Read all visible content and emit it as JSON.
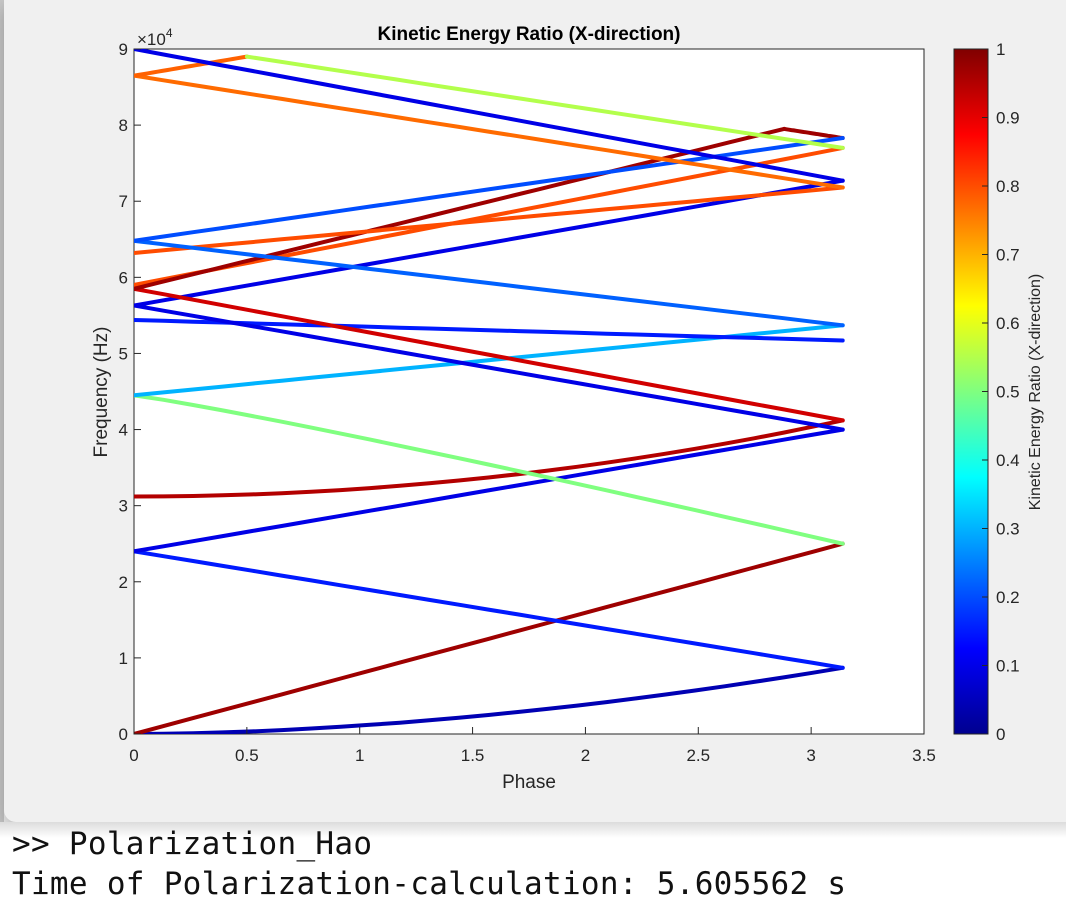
{
  "figure": {
    "title": "Kinetic Energy Ratio (X-direction)"
  },
  "chart_data": {
    "type": "line",
    "title": "Kinetic Energy Ratio (X-direction)",
    "xlabel": "Phase",
    "ylabel": "Frequency (Hz)",
    "y_exponent_label": "×10",
    "y_exponent_power": "4",
    "xlim": [
      0,
      3.5
    ],
    "ylim": [
      0,
      90000
    ],
    "x_ticks": [
      "0",
      "0.5",
      "1",
      "1.5",
      "2",
      "2.5",
      "3",
      "3.5"
    ],
    "y_ticks": [
      "0",
      "1",
      "2",
      "3",
      "4",
      "5",
      "6",
      "7",
      "8",
      "9"
    ],
    "colorbar": {
      "label": "Kinetic Energy Ratio (X-direction)",
      "range": [
        0,
        1
      ],
      "ticks": [
        "0",
        "0.1",
        "0.2",
        "0.3",
        "0.4",
        "0.5",
        "0.6",
        "0.7",
        "0.8",
        "0.9",
        "1"
      ],
      "colormap": "jet"
    },
    "grid": false,
    "series": [
      {
        "x": [
          0,
          3.14
        ],
        "y": [
          0,
          8700
        ],
        "c": 0.05,
        "curve": 1.8
      },
      {
        "x": [
          0,
          3.14
        ],
        "y": [
          0,
          25000
        ],
        "c": 0.97,
        "curve": 1
      },
      {
        "x": [
          0,
          3.14
        ],
        "y": [
          24000,
          8700
        ],
        "c": 0.15,
        "curve": 1
      },
      {
        "x": [
          0,
          3.14
        ],
        "y": [
          24000,
          40000
        ],
        "c": 0.1,
        "curve": 1
      },
      {
        "x": [
          0,
          3.14
        ],
        "y": [
          31200,
          41200
        ],
        "c": 0.95,
        "curve": 2
      },
      {
        "x": [
          0,
          3.14
        ],
        "y": [
          44500,
          25000
        ],
        "c": 0.8,
        "c_start": 0.5,
        "curve": 1.1
      },
      {
        "x": [
          0,
          3.14
        ],
        "y": [
          44500,
          53700
        ],
        "c": 0.3,
        "curve": 1
      },
      {
        "x": [
          0,
          3.14
        ],
        "y": [
          54400,
          51700
        ],
        "c": 0.15,
        "curve": 1
      },
      {
        "x": [
          0,
          3.14
        ],
        "y": [
          56300,
          40000
        ],
        "c": 0.1,
        "curve": 1
      },
      {
        "x": [
          0,
          3.14
        ],
        "y": [
          56300,
          72700
        ],
        "c": 0.1,
        "curve": 1
      },
      {
        "x": [
          0,
          3.14
        ],
        "y": [
          58500,
          41200
        ],
        "c": 0.92,
        "curve": 1
      },
      {
        "x": [
          0,
          3.14
        ],
        "y": [
          59000,
          77000
        ],
        "c": 0.8,
        "curve": 1
      },
      {
        "x": [
          0,
          2.88,
          3.14
        ],
        "y": [
          58500,
          79500,
          78300
        ],
        "c": 0.97,
        "curve": 1
      },
      {
        "x": [
          0,
          3.14
        ],
        "y": [
          63200,
          71800
        ],
        "c": 0.8,
        "curve": 1
      },
      {
        "x": [
          0,
          3.14
        ],
        "y": [
          64800,
          53700
        ],
        "c": 0.22,
        "curve": 1
      },
      {
        "x": [
          0,
          3.14
        ],
        "y": [
          64800,
          78300
        ],
        "c": 0.2,
        "curve": 1
      },
      {
        "x": [
          0,
          3.14
        ],
        "y": [
          86500,
          71800
        ],
        "c": 0.77,
        "curve": 1
      },
      {
        "x": [
          0,
          0.5,
          3.14
        ],
        "y": [
          86500,
          89000,
          77000
        ],
        "c": 0.55,
        "c_start": 0.78,
        "curve": 1
      },
      {
        "x": [
          0,
          3.14
        ],
        "y": [
          90000,
          72700
        ],
        "c": 0.1,
        "curve": 1
      }
    ]
  },
  "console": {
    "line1": ">> Polarization_Hao",
    "line2": "Time of Polarization-calculation: 5.605562 s"
  }
}
